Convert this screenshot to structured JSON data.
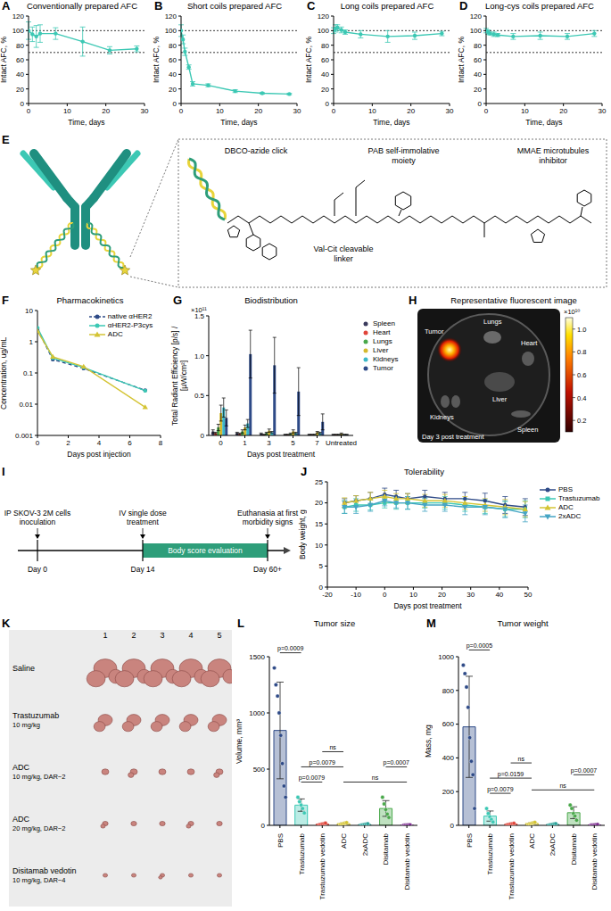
{
  "chart_data": [
    {
      "panel": "A",
      "type": "line",
      "title": "Conventionally prepared AFC",
      "x_label": "Time, days",
      "y_label": "Intact AFC, %",
      "xlim": [
        0,
        30
      ],
      "xticks": [
        0,
        10,
        20,
        30
      ],
      "ylim": [
        0,
        120
      ],
      "yticks": [
        0,
        20,
        40,
        60,
        80,
        100,
        120
      ],
      "reference_lines": [
        100,
        70
      ],
      "color": "#3cc8b4",
      "marker": "circle",
      "x": [
        0,
        1,
        2,
        3,
        7,
        14,
        21,
        28
      ],
      "values": [
        100,
        95,
        92,
        96,
        96,
        85,
        73,
        75
      ],
      "errors": [
        12,
        10,
        15,
        12,
        8,
        20,
        5,
        4
      ]
    },
    {
      "panel": "B",
      "type": "line",
      "title": "Short coils prepared AFC",
      "x_label": "Time, days",
      "y_label": "Intact AFC, %",
      "xlim": [
        0,
        30
      ],
      "xticks": [
        0,
        10,
        20,
        30
      ],
      "ylim": [
        0,
        120
      ],
      "yticks": [
        0,
        20,
        40,
        60,
        80,
        100,
        120
      ],
      "reference_lines": [
        100,
        70
      ],
      "color": "#3cc8b4",
      "marker": "circle",
      "x": [
        0,
        0.5,
        1,
        2,
        3,
        7,
        14,
        21,
        28
      ],
      "values": [
        100,
        88,
        71,
        50,
        27,
        25,
        17,
        14,
        13
      ],
      "errors": [
        8,
        6,
        5,
        3,
        3,
        2,
        2,
        1,
        1
      ]
    },
    {
      "panel": "C",
      "type": "line",
      "title": "Long coils prepared AFC",
      "x_label": "Time, days",
      "y_label": "Intact AFC, %",
      "xlim": [
        0,
        30
      ],
      "xticks": [
        0,
        10,
        20,
        30
      ],
      "ylim": [
        0,
        120
      ],
      "yticks": [
        0,
        20,
        40,
        60,
        80,
        100,
        120
      ],
      "reference_lines": [
        100,
        70
      ],
      "color": "#3cc8b4",
      "marker": "circle",
      "x": [
        0,
        0.5,
        1,
        2,
        3,
        7,
        14,
        21,
        28
      ],
      "values": [
        100,
        103,
        104,
        101,
        98,
        95,
        92,
        93,
        96
      ],
      "errors": [
        4,
        5,
        4,
        4,
        3,
        5,
        8,
        5,
        3
      ]
    },
    {
      "panel": "D",
      "type": "line",
      "title": "Long-cys coils prepared AFC",
      "x_label": "Time, days",
      "y_label": "Intact AFC, %",
      "xlim": [
        0,
        30
      ],
      "xticks": [
        0,
        10,
        20,
        30
      ],
      "ylim": [
        0,
        120
      ],
      "yticks": [
        0,
        20,
        40,
        60,
        80,
        100,
        120
      ],
      "reference_lines": [
        100,
        70
      ],
      "color": "#3cc8b4",
      "marker": "circle",
      "x": [
        0,
        0.5,
        1,
        2,
        3,
        7,
        14,
        21,
        28
      ],
      "values": [
        100,
        98,
        96,
        95,
        94,
        92,
        93,
        92,
        96
      ],
      "errors": [
        3,
        3,
        2,
        3,
        2,
        4,
        5,
        4,
        4
      ]
    },
    {
      "panel": "F",
      "type": "line",
      "title": "Pharmacokinetics",
      "x_label": "Days post injection",
      "y_label": "Concentration, ug/mL",
      "log": "y",
      "xlim": [
        0,
        8
      ],
      "xticks": [
        0,
        2,
        4,
        6,
        8
      ],
      "ylim": [
        0.001,
        10
      ],
      "yticks": [
        0.001,
        0.01,
        0.1,
        1,
        10
      ],
      "legend": "top-right",
      "x": [
        0,
        1,
        3,
        7
      ],
      "series": [
        {
          "name": "native αHER2",
          "color": "#2e4a87",
          "marker": "circle",
          "line_style": "dashed",
          "values": [
            2.5,
            0.27,
            0.14,
            0.028
          ]
        },
        {
          "name": "αHER2-P3cys",
          "color": "#3cc8b4",
          "marker": "circle",
          "line_style": "solid",
          "values": [
            2.8,
            0.3,
            0.15,
            0.027
          ]
        },
        {
          "name": "ADC",
          "color": "#d4c435",
          "marker": "triangle",
          "line_style": "solid",
          "values": [
            2.2,
            0.33,
            0.16,
            0.008
          ]
        }
      ]
    },
    {
      "panel": "G",
      "type": "bar",
      "title": "Biodistribution",
      "x_label": "Days post treatment",
      "y_label": "Total Radiant Efficiency [p/s] / [µW/cm²]",
      "y_scale_label": "×10¹¹",
      "categories": [
        "0",
        "1",
        "3",
        "5",
        "7",
        "Untreated"
      ],
      "ylim": [
        0,
        1.5
      ],
      "yticks": [
        0,
        0.5,
        {
          "value": 1,
          "label": "1.0"
        },
        1.5
      ],
      "legend": "right",
      "series": [
        {
          "name": "Spleen",
          "color": "#3a3a5c",
          "marker": "circle",
          "values": [
            0.05,
            0.03,
            0.02,
            0.01,
            0.01,
            0.01
          ],
          "errors": [
            0.02,
            0.01,
            0.01,
            0.005,
            0.005,
            0.005
          ]
        },
        {
          "name": "Heart",
          "color": "#e0453a",
          "marker": "circle",
          "values": [
            0.03,
            0.02,
            0.01,
            0.01,
            0.01,
            0.01
          ],
          "errors": [
            0.01,
            0.01,
            0.005,
            0.005,
            0.005,
            0.005
          ]
        },
        {
          "name": "Lungs",
          "color": "#49a84a",
          "marker": "circle",
          "values": [
            0.1,
            0.05,
            0.03,
            0.02,
            0.01,
            0.01
          ],
          "errors": [
            0.04,
            0.02,
            0.01,
            0.01,
            0.005,
            0.005
          ]
        },
        {
          "name": "Liver",
          "color": "#d4b92e",
          "marker": "circle",
          "values": [
            0.28,
            0.1,
            0.06,
            0.05,
            0.04,
            0.02
          ],
          "errors": [
            0.1,
            0.03,
            0.02,
            0.02,
            0.01,
            0.01
          ]
        },
        {
          "name": "Kidneys",
          "color": "#3cb8c8",
          "marker": "circle",
          "values": [
            0.35,
            0.15,
            0.04,
            0.03,
            0.03,
            0.01
          ],
          "errors": [
            0.12,
            0.05,
            0.01,
            0.01,
            0.01,
            0.005
          ]
        },
        {
          "name": "Tumor",
          "color": "#2e4a87",
          "marker": "circle",
          "values": [
            0.22,
            1.02,
            0.88,
            0.55,
            0.17,
            0.01
          ],
          "errors": [
            0.1,
            0.3,
            0.35,
            0.3,
            0.1,
            0.005
          ]
        }
      ]
    },
    {
      "panel": "J",
      "type": "line",
      "title": "Tolerability",
      "x_label": "Days post treatment",
      "y_label": "Body weight, g",
      "xlim": [
        -20,
        50
      ],
      "xticks": [
        -20,
        -10,
        0,
        10,
        20,
        30,
        40,
        50
      ],
      "ylim": [
        0,
        25
      ],
      "yticks": [
        0,
        5,
        10,
        15,
        20,
        25
      ],
      "legend": "right",
      "x": [
        -14,
        -10,
        -5,
        0,
        4,
        8,
        14,
        21,
        28,
        35,
        42,
        49
      ],
      "series": [
        {
          "name": "PBS",
          "color": "#2e4a87",
          "marker": "circle",
          "line_style": "solid",
          "values": [
            20,
            20.5,
            21,
            22,
            21.5,
            21,
            21.5,
            21,
            21,
            20.5,
            19.5,
            19
          ],
          "errors": [
            1,
            1.2,
            1.5,
            1.5,
            1.5,
            1.2,
            1.5,
            1.5,
            1.5,
            1.8,
            2,
            2
          ]
        },
        {
          "name": "Trastuzumab",
          "color": "#3cc8b4",
          "marker": "square",
          "line_style": "solid",
          "values": [
            19,
            19.5,
            19.5,
            20,
            20,
            20,
            20,
            20,
            19.5,
            19,
            18.5,
            18.5
          ],
          "errors": [
            1.5,
            1.5,
            1.2,
            1.2,
            1.5,
            1.5,
            1.2,
            1.5,
            1.5,
            1.5,
            1.8,
            2
          ]
        },
        {
          "name": "ADC",
          "color": "#d4c435",
          "marker": "triangle",
          "line_style": "solid",
          "values": [
            20,
            20.5,
            21,
            21.5,
            21,
            21,
            20.5,
            20.5,
            20,
            19.5,
            19,
            18.5
          ],
          "errors": [
            1.2,
            1.2,
            1.5,
            1.5,
            1.2,
            1.2,
            1.5,
            1.5,
            1.5,
            1.5,
            1.8,
            1.8
          ]
        },
        {
          "name": "2xADC",
          "color": "#45a5c4",
          "marker": "triangle-down",
          "line_style": "solid",
          "values": [
            19,
            19,
            19.5,
            20.5,
            20,
            20,
            19.5,
            19.5,
            19,
            19,
            18.5,
            17.5
          ],
          "errors": [
            1.5,
            1.5,
            1.5,
            1.2,
            1.2,
            1.5,
            1.5,
            1.5,
            1.8,
            1.8,
            2,
            2
          ]
        }
      ]
    },
    {
      "panel": "L",
      "type": "bar",
      "title": "Tumor size",
      "y_label": "Volume, mm³",
      "categories": [
        "PBS",
        "Trastuzumab",
        "Trastuzumab vedotin",
        "ADC",
        "2xADC",
        "Disitamab",
        "Disitamab vedotin"
      ],
      "colors": [
        "#2e4a87",
        "#3cc8b4",
        "#e0453a",
        "#d4c435",
        "#2ba39a",
        "#49a84a",
        "#7b2d8e"
      ],
      "ylim": [
        0,
        1500
      ],
      "yticks": [
        0,
        500,
        1000,
        1500
      ],
      "values": [
        844,
        180,
        12,
        16,
        8,
        150,
        3
      ],
      "errors": [
        430,
        55,
        6,
        6,
        4,
        70,
        1.5
      ],
      "points": [
        [
          1400,
          1250,
          1150,
          1000,
          800,
          550,
          350,
          250
        ],
        [
          250,
          210,
          180,
          150,
          110
        ],
        [
          5,
          8,
          12,
          15,
          20
        ],
        [
          8,
          12,
          16,
          20,
          24
        ],
        [
          3,
          5,
          8,
          10,
          14
        ],
        [
          250,
          190,
          140,
          100,
          70
        ],
        [
          1,
          2,
          3,
          4,
          5
        ]
      ],
      "comparisons": [
        {
          "from": 0,
          "to": 1,
          "label": "p=0.0009"
        },
        {
          "from": 1,
          "to": 2,
          "label": "p=0.0079"
        },
        {
          "from": 1,
          "to": 3,
          "label": "p=0.0079"
        },
        {
          "from": 2,
          "to": 3,
          "label": "ns"
        },
        {
          "from": 3,
          "to": 6,
          "label": "ns"
        },
        {
          "from": 5,
          "to": 6,
          "label": "p=0.0007"
        }
      ]
    },
    {
      "panel": "M",
      "type": "bar",
      "title": "Tumor weight",
      "y_label": "Mass, mg",
      "categories": [
        "PBS",
        "Trastuzumab",
        "Trastuzumab vedotin",
        "ADC",
        "2xADC",
        "Disitamab",
        "Disitamab vedotin"
      ],
      "colors": [
        "#2e4a87",
        "#3cc8b4",
        "#e0453a",
        "#d4c435",
        "#2ba39a",
        "#49a84a",
        "#7b2d8e"
      ],
      "ylim": [
        0,
        1000
      ],
      "yticks": [
        0,
        200,
        400,
        600,
        800,
        1000
      ],
      "values": [
        584,
        55,
        8,
        12,
        6,
        75,
        3
      ],
      "errors": [
        300,
        30,
        3,
        5,
        3,
        35,
        1.5
      ],
      "points": [
        [
          950,
          900,
          820,
          700,
          520,
          380,
          300,
          100
        ],
        [
          100,
          70,
          50,
          35,
          20
        ],
        [
          4,
          6,
          8,
          10,
          12
        ],
        [
          6,
          9,
          12,
          15,
          18
        ],
        [
          2,
          4,
          6,
          8,
          10
        ],
        [
          120,
          100,
          70,
          55,
          30
        ],
        [
          1,
          2,
          3,
          4,
          5
        ]
      ],
      "comparisons": [
        {
          "from": 0,
          "to": 1,
          "label": "p=0.0005"
        },
        {
          "from": 1,
          "to": 2,
          "label": "p=0.0079"
        },
        {
          "from": 1,
          "to": 3,
          "label": "p=0.0159"
        },
        {
          "from": 2,
          "to": 3,
          "label": "ns"
        },
        {
          "from": 3,
          "to": 6,
          "label": "ns"
        },
        {
          "from": 5,
          "to": 6,
          "label": "p=0.0007"
        }
      ]
    }
  ],
  "panels": {
    "E": {
      "labels": [
        "DBCO-azide click",
        "PAB self-immolative moiety",
        "Val-Cit cleavable linker",
        "MMAE microtubules inhibitor"
      ]
    },
    "H": {
      "title": "Representative fluorescent image",
      "caption": "Day 3 post treatment",
      "labels": [
        "Tumor",
        "Lungs",
        "Heart",
        "Liver",
        "Kidneys",
        "Spleen"
      ],
      "colorbar": {
        "label": "×10¹⁰",
        "range": [
          0.1,
          1.1
        ],
        "ticks": [
          0.2,
          0.4,
          0.6,
          0.8,
          {
            "value": 1,
            "label": "1.0"
          }
        ]
      }
    },
    "I": {
      "events": [
        {
          "label": "IP SKOV-3 2M cells inoculation",
          "day": "Day 0"
        },
        {
          "label": "IV single dose treatment",
          "day": "Day 14"
        },
        {
          "label": "Euthanasia at first morbidity signs",
          "day": "Day 60+"
        }
      ],
      "phase": "Body score evaluation"
    },
    "K": {
      "columns": [
        1,
        2,
        3,
        4,
        5
      ],
      "rows": [
        {
          "name": "Saline"
        },
        {
          "name": "Trastuzumab",
          "dose": "10 mg/kg"
        },
        {
          "name": "ADC",
          "dose": "10 mg/kg, DAR~2"
        },
        {
          "name": "ADC",
          "dose": "20 mg/kg, DAR~2"
        },
        {
          "name": "Disitamab vedotin",
          "dose": "10 mg/kg, DAR~4"
        }
      ]
    }
  }
}
